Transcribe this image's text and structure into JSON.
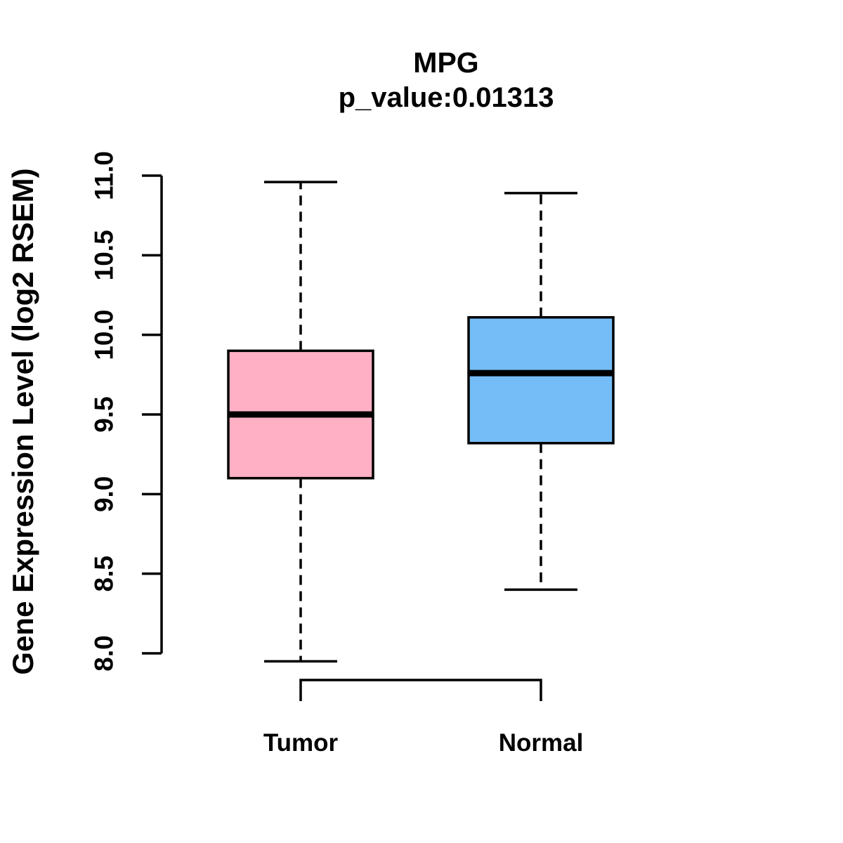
{
  "figure": {
    "background": "#FFFFFF",
    "text_color": "#000000"
  },
  "chart_data": {
    "type": "boxplot",
    "title": "MPG",
    "subtitle": "p_value:0.01313",
    "ylabel": "Gene Expression Level (log2 RSEM)",
    "xlabel": "",
    "categories": [
      "Tumor",
      "Normal"
    ],
    "axis_range": [
      8.0,
      11.0
    ],
    "yticks": [
      8.0,
      8.5,
      9.0,
      9.5,
      10.0,
      10.5,
      11.0
    ],
    "grid": false,
    "legend": "none",
    "whisker_style": "dashed",
    "series": [
      {
        "name": "Tumor",
        "box_color": "#FFB0C4",
        "stats": {
          "lower_whisker": 7.95,
          "q1": 9.1,
          "median": 9.5,
          "q3": 9.9,
          "upper_whisker": 10.96
        }
      },
      {
        "name": "Normal",
        "box_color": "#74BDF7",
        "stats": {
          "lower_whisker": 8.4,
          "q1": 9.32,
          "median": 9.76,
          "q3": 10.11,
          "upper_whisker": 10.89
        }
      }
    ]
  }
}
